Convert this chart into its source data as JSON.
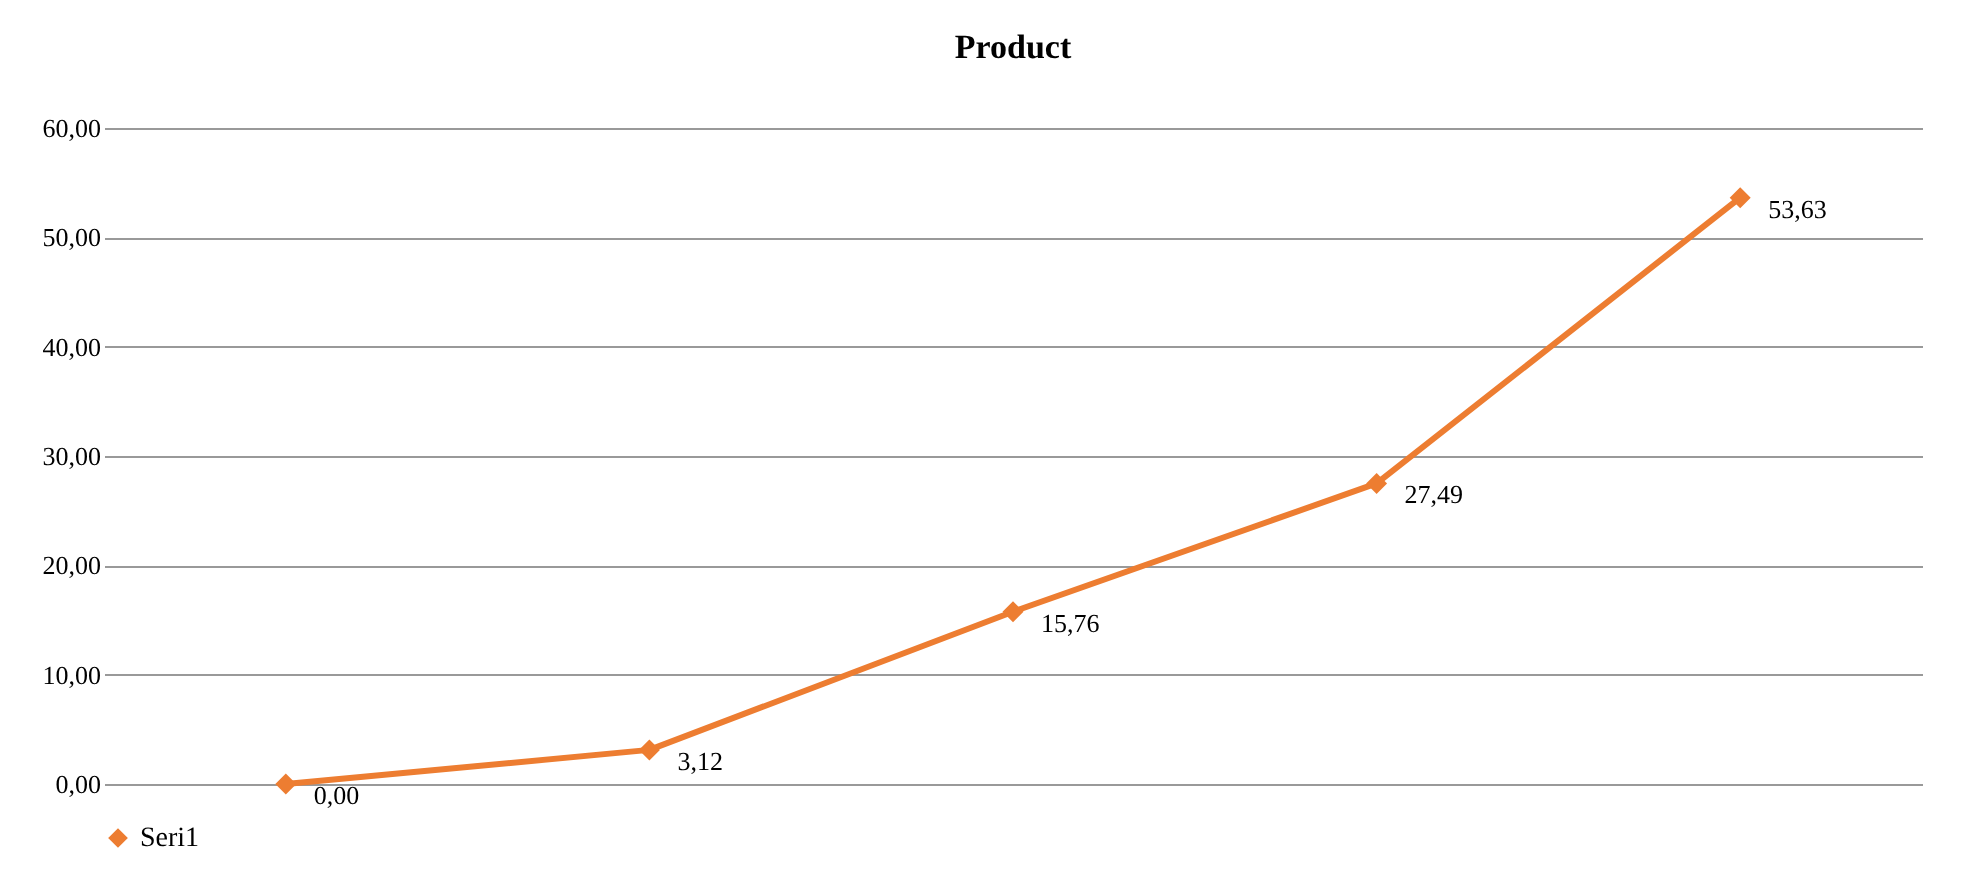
{
  "chart_data": {
    "type": "line",
    "title": "Product",
    "categories": [
      null,
      null,
      null,
      null,
      null
    ],
    "series": [
      {
        "name": "Seri1",
        "color": "#ed7d31",
        "values": [
          0.0,
          3.12,
          15.76,
          27.49,
          53.63
        ],
        "value_labels": [
          "0,00",
          "3,12",
          "15,76",
          "27,49",
          "53,63"
        ]
      }
    ],
    "ylim": [
      0,
      60
    ],
    "yticks": [
      {
        "value": 0,
        "label": "0,00"
      },
      {
        "value": 10,
        "label": "10,00"
      },
      {
        "value": 20,
        "label": "20,00"
      },
      {
        "value": 30,
        "label": "30,00"
      },
      {
        "value": 40,
        "label": "40,00"
      },
      {
        "value": 50,
        "label": "50,00"
      },
      {
        "value": 60,
        "label": "60,00"
      }
    ],
    "tick_labels": "y",
    "grid": "y",
    "legend": "bottom",
    "marker": "diamond",
    "line_style": "solid"
  }
}
